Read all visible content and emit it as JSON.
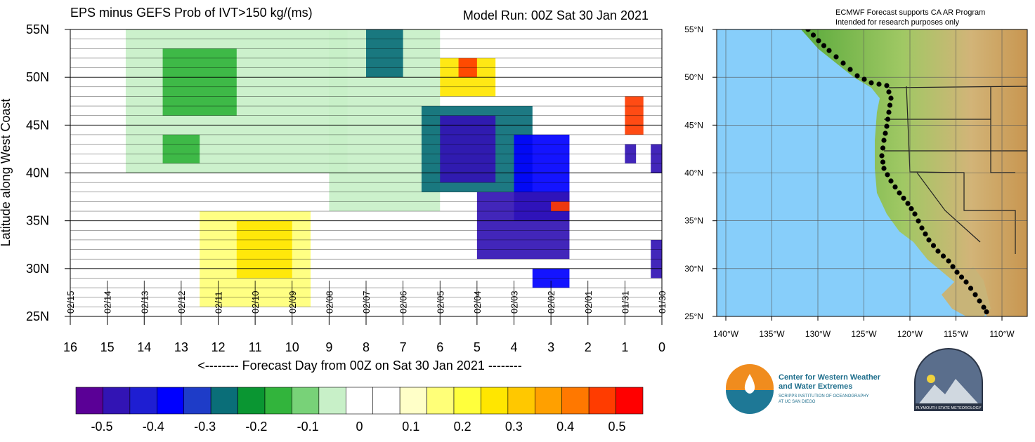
{
  "title": "EPS minus GEFS Prob of IVT>150 kg/(ms)",
  "model_run": "Model Run: 00Z Sat 30 Jan 2021",
  "map_note_line1": "ECMWF Forecast supports CA AR Program",
  "map_note_line2": "Intended for research purposes only",
  "logos": {
    "cw3e_line1": "Center for Western Weather",
    "cw3e_line2": "and Water Extremes",
    "cw3e_line3": "SCRIPPS INSTITUTION OF OCEANOGRAPHY",
    "cw3e_line4": "AT UC SAN DIEGO",
    "psu_text": "PLYMOUTH STATE METEOROLOGY"
  },
  "colors": {
    "ocean": "#87cefa",
    "land_low": "#4aa02c",
    "land_high": "#c8a050"
  },
  "chart_data": {
    "type": "heatmap",
    "title": "EPS minus GEFS Prob of IVT>150 kg/(ms)",
    "xlabel": "<-------- Forecast Day from 00Z on Sat 30 Jan 2021 --------",
    "ylabel": "Latitude along West Coast",
    "x_reversed": true,
    "xlim": [
      16,
      0
    ],
    "ylim": [
      25,
      55
    ],
    "x_ticks": [
      "16",
      "15",
      "14",
      "13",
      "12",
      "11",
      "10",
      "9",
      "8",
      "7",
      "6",
      "5",
      "4",
      "3",
      "2",
      "1",
      "0"
    ],
    "y_ticks": [
      "25N",
      "30N",
      "35N",
      "40N",
      "45N",
      "50N",
      "55N"
    ],
    "date_labels": [
      "02/15",
      "02/14",
      "02/13",
      "02/12",
      "02/11",
      "02/10",
      "02/09",
      "02/08",
      "02/07",
      "02/06",
      "02/05",
      "02/04",
      "02/03",
      "02/02",
      "02/01",
      "01/31",
      "01/30"
    ],
    "colorbar": {
      "labels": [
        "-0.5",
        "-0.4",
        "-0.3",
        "-0.2",
        "-0.1",
        "0",
        "0.1",
        "0.2",
        "0.3",
        "0.4",
        "0.5"
      ],
      "colors": [
        "#5a0096",
        "#3214b4",
        "#1e1ed2",
        "#0000ff",
        "#1e3cc8",
        "#0a6e78",
        "#0a9632",
        "#32b43c",
        "#78d278",
        "#c8f0c8",
        "#ffffff",
        "#ffffff",
        "#ffffc8",
        "#ffff78",
        "#ffff3c",
        "#ffe600",
        "#ffc800",
        "#ffa000",
        "#ff7800",
        "#ff3c00",
        "#ff0000"
      ]
    },
    "regions": [
      {
        "x": [
          14.5,
          8.5
        ],
        "y": [
          40,
          55
        ],
        "value": -0.1
      },
      {
        "x": [
          13.5,
          11.5
        ],
        "y": [
          46,
          53
        ],
        "value": -0.2
      },
      {
        "x": [
          13.5,
          12.5
        ],
        "y": [
          41,
          44
        ],
        "value": -0.2
      },
      {
        "x": [
          9.0,
          6.0
        ],
        "y": [
          36,
          55
        ],
        "value": -0.1
      },
      {
        "x": [
          8.0,
          7.0
        ],
        "y": [
          50,
          55
        ],
        "value": -0.3
      },
      {
        "x": [
          6.5,
          3.5
        ],
        "y": [
          38,
          47
        ],
        "value": -0.3
      },
      {
        "x": [
          6.0,
          4.5
        ],
        "y": [
          39,
          46
        ],
        "value": -0.5
      },
      {
        "x": [
          4.0,
          2.5
        ],
        "y": [
          35,
          44
        ],
        "value": -0.4
      },
      {
        "x": [
          5.0,
          2.5
        ],
        "y": [
          31,
          38
        ],
        "value": -0.5
      },
      {
        "x": [
          3.5,
          2.5
        ],
        "y": [
          28,
          30
        ],
        "value": -0.4
      },
      {
        "x": [
          6.0,
          4.5
        ],
        "y": [
          48,
          52
        ],
        "value": 0.2
      },
      {
        "x": [
          5.5,
          5.0
        ],
        "y": [
          50,
          52
        ],
        "value": 0.4
      },
      {
        "x": [
          12.5,
          9.5
        ],
        "y": [
          26,
          36
        ],
        "value": 0.1
      },
      {
        "x": [
          11.5,
          10.0
        ],
        "y": [
          29,
          35
        ],
        "value": 0.2
      },
      {
        "x": [
          3.0,
          2.5
        ],
        "y": [
          36,
          37
        ],
        "value": 0.4
      },
      {
        "x": [
          1.0,
          0.5
        ],
        "y": [
          44,
          48
        ],
        "value": 0.4
      },
      {
        "x": [
          1.0,
          0.7
        ],
        "y": [
          41,
          43
        ],
        "value": -0.5
      },
      {
        "x": [
          0.3,
          0.0
        ],
        "y": [
          29,
          33
        ],
        "value": -0.5
      },
      {
        "x": [
          0.3,
          0.0
        ],
        "y": [
          40,
          43
        ],
        "value": -0.5
      }
    ]
  },
  "map": {
    "lon_ticks": [
      "140°W",
      "135°W",
      "130°W",
      "125°W",
      "120°W",
      "115°W",
      "110°W"
    ],
    "lat_ticks": [
      "25°N",
      "30°N",
      "35°N",
      "40°N",
      "45°N",
      "50°N",
      "55°N"
    ]
  }
}
